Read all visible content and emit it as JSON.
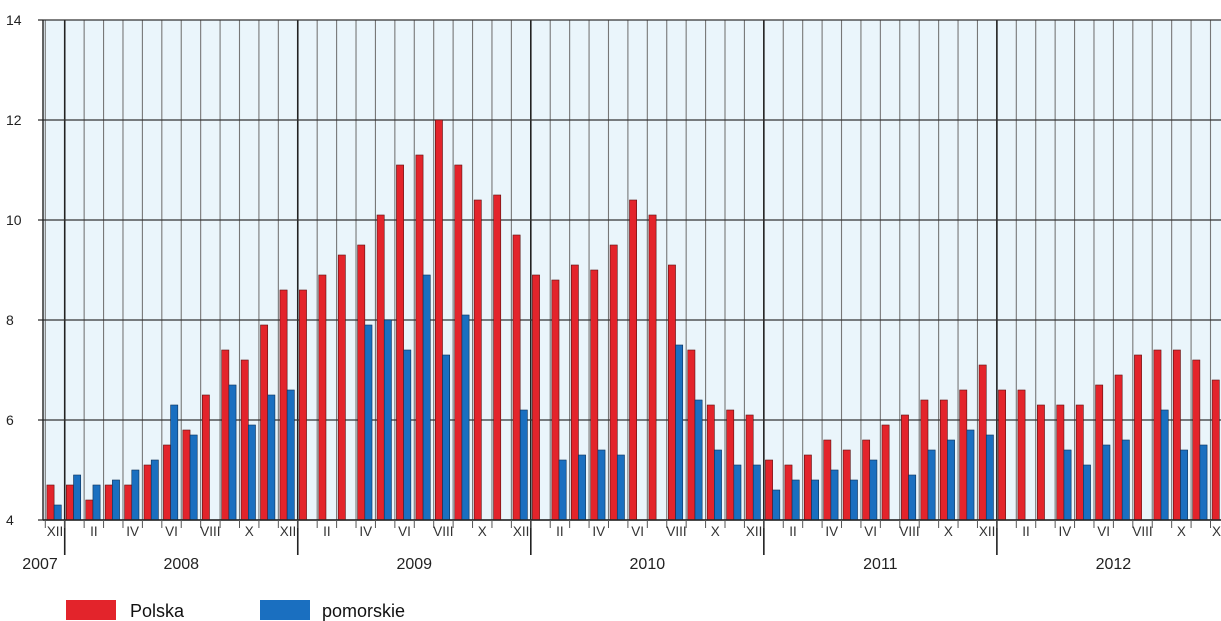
{
  "chart_data": {
    "type": "bar",
    "ylim": [
      4,
      14
    ],
    "yticks": [
      4,
      6,
      8,
      10,
      12,
      14
    ],
    "grid": true,
    "colors": {
      "Polska": "#e3242b",
      "pomorskie": "#1a6fc0",
      "plot_bg": "#eaf5fb",
      "grid": "#777777"
    },
    "legend": {
      "placement": "bottom-left",
      "items": [
        "Polska",
        "pomorskie"
      ]
    },
    "categories": [
      "XII 2007",
      "I",
      "II",
      "III",
      "IV",
      "V",
      "VI",
      "VII",
      "VIII",
      "IX",
      "X",
      "XI",
      "XII",
      "I",
      "II",
      "III",
      "IV",
      "V",
      "VI",
      "VII",
      "VIII",
      "IX",
      "X",
      "XI",
      "XII",
      "I",
      "II",
      "III",
      "IV",
      "V",
      "VI",
      "VII",
      "VIII",
      "IX",
      "X",
      "XI",
      "XII",
      "I",
      "II",
      "III",
      "IV",
      "V",
      "VI",
      "VII",
      "VIII",
      "IX",
      "X",
      "XI",
      "XII",
      "I",
      "II",
      "III",
      "IV",
      "V",
      "VI",
      "VII",
      "VIII",
      "IX",
      "X",
      "XI",
      "XII"
    ],
    "month_labels": [
      {
        "index": 0,
        "text": "XII"
      },
      {
        "index": 2,
        "text": "II"
      },
      {
        "index": 4,
        "text": "IV"
      },
      {
        "index": 6,
        "text": "VI"
      },
      {
        "index": 8,
        "text": "VIII"
      },
      {
        "index": 10,
        "text": "X"
      },
      {
        "index": 12,
        "text": "XII"
      },
      {
        "index": 14,
        "text": "II"
      },
      {
        "index": 16,
        "text": "IV"
      },
      {
        "index": 18,
        "text": "VI"
      },
      {
        "index": 20,
        "text": "VIII"
      },
      {
        "index": 22,
        "text": "X"
      },
      {
        "index": 24,
        "text": "XII"
      },
      {
        "index": 26,
        "text": "II"
      },
      {
        "index": 28,
        "text": "IV"
      },
      {
        "index": 30,
        "text": "VI"
      },
      {
        "index": 32,
        "text": "VIII"
      },
      {
        "index": 34,
        "text": "X"
      },
      {
        "index": 36,
        "text": "XII"
      },
      {
        "index": 38,
        "text": "II"
      },
      {
        "index": 40,
        "text": "IV"
      },
      {
        "index": 42,
        "text": "VI"
      },
      {
        "index": 44,
        "text": "VIII"
      },
      {
        "index": 46,
        "text": "X"
      },
      {
        "index": 48,
        "text": "XII"
      },
      {
        "index": 50,
        "text": "II"
      },
      {
        "index": 52,
        "text": "IV"
      },
      {
        "index": 54,
        "text": "VI"
      },
      {
        "index": 56,
        "text": "VIII"
      },
      {
        "index": 58,
        "text": "X"
      },
      {
        "index": 60,
        "text": "XII"
      }
    ],
    "years": [
      {
        "text": "2007",
        "first": 0,
        "last": 0
      },
      {
        "text": "2008",
        "first": 1,
        "last": 12
      },
      {
        "text": "2009",
        "first": 13,
        "last": 24
      },
      {
        "text": "2010",
        "first": 25,
        "last": 36
      },
      {
        "text": "2011",
        "first": 37,
        "last": 48
      },
      {
        "text": "2012",
        "first": 49,
        "last": 60
      }
    ],
    "series": [
      {
        "name": "Polska",
        "values": [
          4.7,
          4.7,
          4.4,
          4.7,
          4.7,
          5.1,
          5.5,
          5.8,
          6.5,
          7.4,
          7.2,
          7.9,
          8.6,
          8.6,
          8.9,
          9.3,
          9.5,
          10.1,
          11.1,
          11.3,
          12.0,
          11.1,
          10.4,
          10.5,
          9.7,
          8.9,
          8.8,
          9.1,
          9.0,
          9.5,
          10.4,
          10.1,
          9.1,
          7.4,
          6.3,
          6.2,
          6.1,
          5.2,
          5.1,
          5.3,
          5.6,
          5.4,
          5.6,
          5.9,
          6.1,
          6.4,
          6.4,
          6.6,
          7.1,
          6.6,
          6.6,
          6.3,
          6.3,
          6.3,
          6.7,
          6.9,
          7.3,
          7.4,
          7.4,
          7.2,
          6.8
        ]
      },
      {
        "name": "pomorskie",
        "values": [
          4.3,
          4.9,
          4.7,
          4.8,
          5.0,
          5.2,
          6.3,
          5.7,
          null,
          6.7,
          5.9,
          6.5,
          6.6,
          null,
          null,
          null,
          7.9,
          8.0,
          7.4,
          8.9,
          7.3,
          8.1,
          null,
          null,
          6.2,
          null,
          5.2,
          5.3,
          5.4,
          5.3,
          null,
          null,
          7.5,
          6.4,
          5.4,
          5.1,
          5.1,
          4.6,
          4.8,
          4.8,
          5.0,
          4.8,
          5.2,
          null,
          4.9,
          5.4,
          5.6,
          5.8,
          5.7,
          null,
          null,
          null,
          5.4,
          5.1,
          5.5,
          5.6,
          null,
          6.2,
          5.4,
          5.5,
          null
        ]
      }
    ]
  }
}
